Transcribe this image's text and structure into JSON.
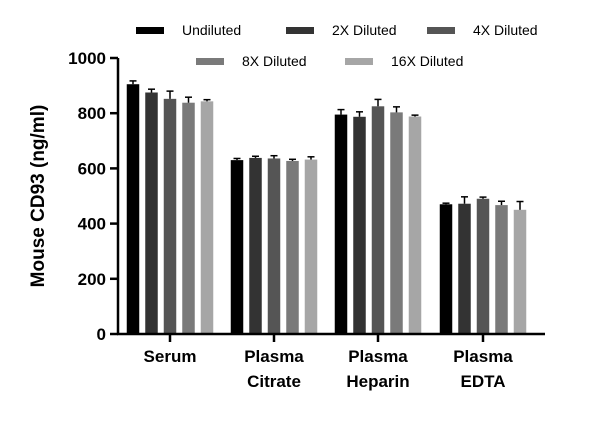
{
  "chart_data": {
    "type": "bar",
    "title": "",
    "xlabel": "",
    "ylabel": "Mouse CD93 (ng/ml)",
    "ylim": [
      0,
      1000
    ],
    "yticks": [
      0,
      200,
      400,
      600,
      800,
      1000
    ],
    "categories": [
      [
        "Serum"
      ],
      [
        "Plasma",
        "Citrate"
      ],
      [
        "Plasma",
        "Heparin"
      ],
      [
        "Plasma",
        "EDTA"
      ]
    ],
    "series": [
      {
        "name": "Undiluted",
        "color": "#000000",
        "values": [
          905,
          630,
          795,
          470
        ],
        "errors": [
          12,
          6,
          18,
          4
        ]
      },
      {
        "name": "2X Diluted",
        "color": "#333333",
        "values": [
          875,
          638,
          787,
          472
        ],
        "errors": [
          12,
          6,
          18,
          25
        ]
      },
      {
        "name": "4X Diluted",
        "color": "#555555",
        "values": [
          852,
          636,
          825,
          490
        ],
        "errors": [
          28,
          10,
          25,
          6
        ]
      },
      {
        "name": "8X Diluted",
        "color": "#7a7a7a",
        "values": [
          838,
          627,
          803,
          467
        ],
        "errors": [
          20,
          6,
          20,
          14
        ]
      },
      {
        "name": "16X Diluted",
        "color": "#a6a6a6",
        "values": [
          843,
          632,
          788,
          450
        ],
        "errors": [
          6,
          10,
          5,
          30
        ]
      }
    ],
    "legend": "top",
    "grid": false
  }
}
